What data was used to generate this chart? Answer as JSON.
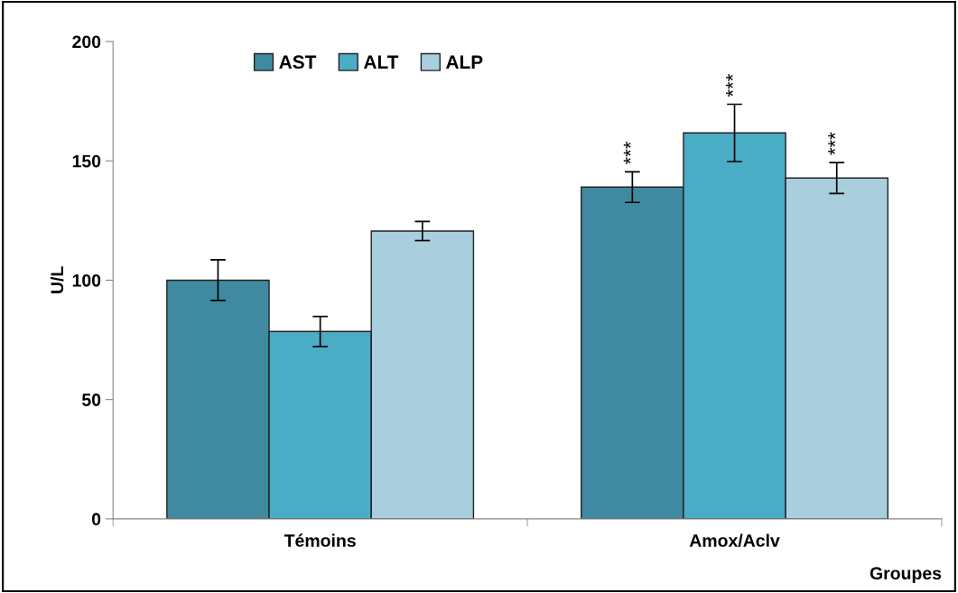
{
  "chart_data": {
    "type": "bar",
    "xlabel": "Groupes",
    "ylabel": "U/L",
    "categories": [
      "Témoins",
      "Amox/Aclv"
    ],
    "series": [
      {
        "name": "AST",
        "color": "#3f8aa0",
        "values": [
          100,
          139
        ],
        "errors": [
          8.5,
          6.4
        ],
        "value_labels": [
          null,
          "***"
        ]
      },
      {
        "name": "ALT",
        "color": "#4bacc6",
        "values": [
          78.5,
          161.7
        ],
        "errors": [
          6.3,
          12
        ],
        "value_labels": [
          null,
          "***"
        ]
      },
      {
        "name": "ALP",
        "color": "#a9cfde",
        "values": [
          120.6,
          142.8
        ],
        "errors": [
          4,
          6.5
        ],
        "value_labels": [
          null,
          "***"
        ]
      }
    ],
    "ylim": [
      0,
      200
    ],
    "yticks": [
      0,
      50,
      100,
      150,
      200
    ],
    "grid": false,
    "legend": "top left"
  }
}
